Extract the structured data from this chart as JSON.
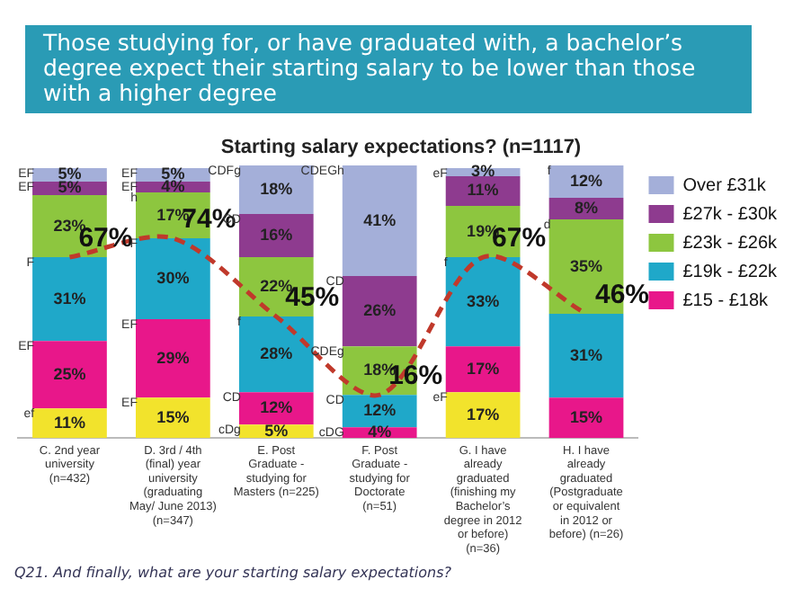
{
  "chart_data": {
    "type": "bar",
    "stacked": true,
    "title": "Those studying for, or have graduated with, a bachelor’s degree expect their starting salary to be lower than those with a higher degree",
    "subtitle": "Starting salary expectations? (n=1117)",
    "categories": [
      "C. 2nd year university (n=432)",
      "D. 3rd / 4th (final) year university (graduating May/ June 2013) (n=347)",
      "E. Post Graduate - studying for Masters (n=225)",
      "F. Post Graduate - studying for Doctorate (n=51)",
      "G. I have already graduated (finishing my Bachelor’s degree in 2012 or before) (n=36)",
      "H. I have already graduated (Postgraduate or equivalent in 2012 or before) (n=26)"
    ],
    "series": [
      {
        "color": "#f2e32c",
        "values": [
          11,
          15,
          5,
          null,
          17,
          null
        ],
        "value_labels": [
          "11%",
          "15%",
          "5%",
          null,
          "17%",
          null
        ]
      },
      {
        "name": "£15 - £18k",
        "color": "#e8178a",
        "values": [
          25,
          29,
          12,
          4,
          17,
          15
        ],
        "value_labels": [
          "25%",
          "29%",
          "12%",
          "4%",
          "17%",
          "15%"
        ]
      },
      {
        "name": "£19k - £22k",
        "color": "#1fa8c9",
        "values": [
          31,
          30,
          28,
          12,
          33,
          31
        ],
        "value_labels": [
          "31%",
          "30%",
          "28%",
          "12%",
          "33%",
          "31%"
        ]
      },
      {
        "name": "£23k - £26k",
        "color": "#8dc63f",
        "values": [
          23,
          17,
          22,
          18,
          19,
          35
        ],
        "value_labels": [
          "23%",
          "17%",
          "22%",
          "18%",
          "19%",
          "35%"
        ]
      },
      {
        "name": "£27k - £30k",
        "color": "#8e3b8f",
        "values": [
          5,
          4,
          16,
          26,
          11,
          8
        ],
        "value_labels": [
          "5%",
          "4%",
          "16%",
          "26%",
          "11%",
          "8%"
        ]
      },
      {
        "name": "Over £31k",
        "color": "#a4afd9",
        "values": [
          5,
          5,
          18,
          41,
          3,
          12
        ],
        "value_labels": [
          "5%",
          "5%",
          "18%",
          "41%",
          "3%",
          "12%"
        ]
      },
      {
        "type": "line",
        "color": "#c0392b",
        "line_style": "dashed",
        "marker": "none",
        "values": [
          67,
          74,
          45,
          16,
          67,
          46
        ],
        "value_labels": [
          "67%",
          "74%",
          "45%",
          "16%",
          "67%",
          "46%"
        ]
      }
    ],
    "ylim": [
      0,
      101
    ],
    "tick_labels": "x",
    "grid": false,
    "legend": "right",
    "annotations": [
      {
        "text": "EF",
        "x": "C. 2nd year university (n=432)",
        "y": 100
      },
      {
        "text": "EF",
        "x": "C. 2nd year university (n=432)",
        "y": 95
      },
      {
        "text": "F",
        "x": "C. 2nd year university (n=432)",
        "y": 67
      },
      {
        "text": "EF",
        "x": "C. 2nd year university (n=432)",
        "y": 36
      },
      {
        "text": "ef",
        "x": "C. 2nd year university (n=432)",
        "y": 11
      },
      {
        "text": "EF",
        "x": "D. 3rd / 4th (final) year university (graduating May/ June 2013) (n=347)",
        "y": 100
      },
      {
        "text": "EF",
        "x": "D. 3rd / 4th (final) year university (graduating May/ June 2013) (n=347)",
        "y": 95
      },
      {
        "text": "h",
        "x": "D. 3rd / 4th (final) year university (graduating May/ June 2013) (n=347)",
        "y": 91
      },
      {
        "text": "F",
        "x": "D. 3rd / 4th (final) year university (graduating May/ June 2013) (n=347)",
        "y": 74
      },
      {
        "text": "EF",
        "x": "D. 3rd / 4th (final) year university (graduating May/ June 2013) (n=347)",
        "y": 44
      },
      {
        "text": "EF",
        "x": "D. 3rd / 4th (final) year university (graduating May/ June 2013) (n=347)",
        "y": 15
      },
      {
        "text": "CDFg",
        "x": "E. Post Graduate - studying for Masters (n=225)",
        "y": 101
      },
      {
        "text": "CD",
        "x": "E. Post Graduate - studying for Masters (n=225)",
        "y": 83
      },
      {
        "text": "f",
        "x": "E. Post Graduate - studying for Masters (n=225)",
        "y": 45
      },
      {
        "text": "CD",
        "x": "E. Post Graduate - studying for Masters (n=225)",
        "y": 17
      },
      {
        "text": "cDg",
        "x": "E. Post Graduate - studying for Masters (n=225)",
        "y": 5
      },
      {
        "text": "CDEGh",
        "x": "F. Post Graduate - studying for Doctorate (n=51)",
        "y": 101
      },
      {
        "text": "CD",
        "x": "F. Post Graduate - studying for Doctorate (n=51)",
        "y": 60
      },
      {
        "text": "CDEg",
        "x": "F. Post Graduate - studying for Doctorate (n=51)",
        "y": 34
      },
      {
        "text": "CD",
        "x": "F. Post Graduate - studying for Doctorate (n=51)",
        "y": 16
      },
      {
        "text": "cDG",
        "x": "F. Post Graduate - studying for Doctorate (n=51)",
        "y": 4
      },
      {
        "text": "eF",
        "x": "G. I have already graduated (finishing my Bachelor’s degree in 2012 or before) (n=36)",
        "y": 100
      },
      {
        "text": "f",
        "x": "G. I have already graduated (finishing my Bachelor’s degree in 2012 or before) (n=36)",
        "y": 67
      },
      {
        "text": "eF",
        "x": "G. I have already graduated (finishing my Bachelor’s degree in 2012 or before) (n=36)",
        "y": 17
      },
      {
        "text": "f",
        "x": "H. I have already graduated (Postgraduate or equivalent in 2012 or before) (n=26)",
        "y": 101
      },
      {
        "text": "d",
        "x": "H. I have already graduated (Postgraduate or equivalent in 2012 or before) (n=26)",
        "y": 81
      },
      "Q21. And finally, what are your starting salary expectations?"
    ]
  }
}
